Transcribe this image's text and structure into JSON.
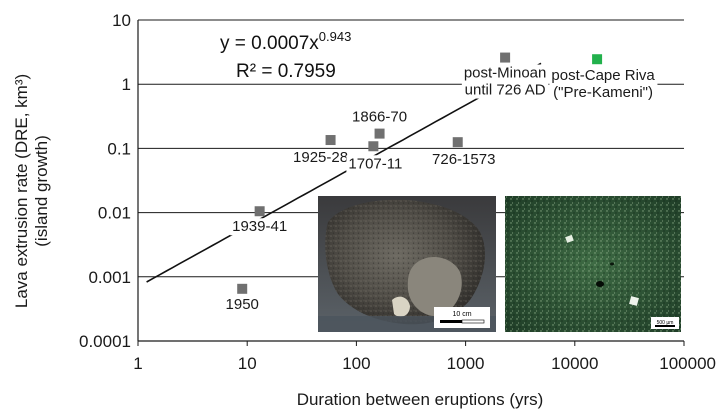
{
  "chart_data": {
    "type": "scatter",
    "xlabel": "Duration between eruptions (yrs)",
    "ylabel_line1": "Lava extrusion rate (DRE, km³)",
    "ylabel_line2": "(island growth)",
    "x_scale": "log",
    "y_scale": "log",
    "xlim": [
      1,
      100000
    ],
    "ylim": [
      0.0001,
      10
    ],
    "x_ticks": [
      1,
      10,
      100,
      1000,
      10000,
      100000
    ],
    "x_tick_labels": [
      "1",
      "10",
      "100",
      "1000",
      "10000",
      "100000"
    ],
    "y_ticks": [
      0.0001,
      0.001,
      0.01,
      0.1,
      1,
      10
    ],
    "y_tick_labels": [
      "0.0001",
      "0.001",
      "0.01",
      "0.1",
      "1",
      "10"
    ],
    "grid": "horizontal",
    "points": [
      {
        "label": "1950",
        "x": 9,
        "y": 0.00065,
        "color": "#707070"
      },
      {
        "label": "1939-41",
        "x": 13,
        "y": 0.0105,
        "color": "#707070"
      },
      {
        "label": "1925-28",
        "x": 58,
        "y": 0.135,
        "color": "#707070"
      },
      {
        "label": "1707-11",
        "x": 143,
        "y": 0.108,
        "color": "#707070"
      },
      {
        "label": "1866-70",
        "x": 163,
        "y": 0.17,
        "color": "#707070"
      },
      {
        "label": "726-1573",
        "x": 847,
        "y": 0.125,
        "color": "#707070"
      },
      {
        "label": "post-Minoan until 726 AD",
        "x": 2300,
        "y": 2.6,
        "color": "#707070"
      },
      {
        "label": "post-Cape Riva (\"Pre-Kameni\")",
        "x": 16000,
        "y": 2.45,
        "color": "#22b14c"
      }
    ],
    "trendline": {
      "a": 0.0007,
      "b": 0.943,
      "x_range": [
        1.2,
        4900
      ]
    },
    "equation_main": "y = 0.0007x",
    "equation_exp": "0.943",
    "r_squared": "R² = 0.7959"
  },
  "insets": {
    "rock_scale": "10 cm",
    "thin_section_scale": "500 µm"
  },
  "colors": {
    "marker_gray": "#707070",
    "marker_green": "#22b14c",
    "grid": "#1a1a1a",
    "text": "#1a1a1a"
  }
}
